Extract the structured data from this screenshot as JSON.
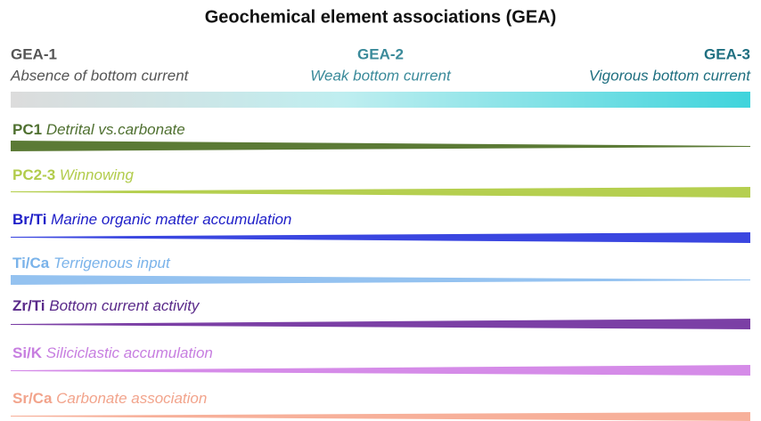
{
  "title": "Geochemical element associations (GEA)",
  "gea": [
    {
      "code": "GEA-1",
      "description": "Absence of bottom current"
    },
    {
      "code": "GEA-2",
      "description": "Weak bottom current"
    },
    {
      "code": "GEA-3",
      "description": "Vigorous bottom current"
    }
  ],
  "proxies": [
    {
      "code": "PC1",
      "description": "Detrital vs.carbonate"
    },
    {
      "code": "PC2-3",
      "description": "Winnowing"
    },
    {
      "code": "Br/Ti",
      "description": "Marine organic matter accumulation"
    },
    {
      "code": "Ti/Ca",
      "description": "Terrigenous input"
    },
    {
      "code": "Zr/Ti",
      "description": "Bottom current activity"
    },
    {
      "code": "Si/K",
      "description": "Siliciclastic accumulation"
    },
    {
      "code": "Sr/Ca",
      "description": "Carbonate association"
    }
  ]
}
